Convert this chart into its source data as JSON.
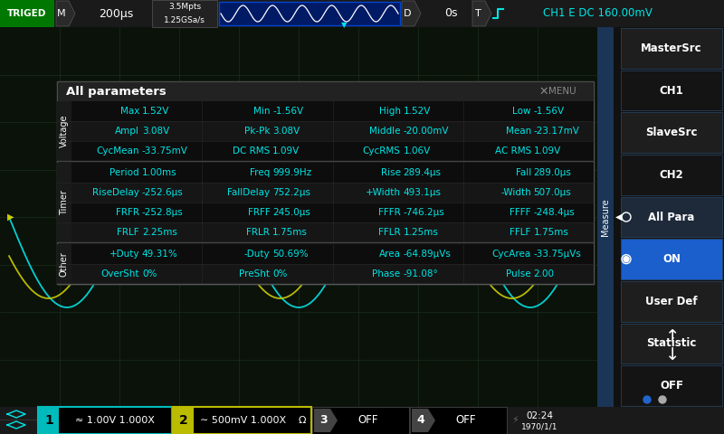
{
  "bg_color": "#000000",
  "screen_bg": "#0a120a",
  "grid_color": "#1c2e1c",
  "cyan": "#00e5e5",
  "yellow": "#cccc00",
  "white": "#ffffff",
  "gray": "#888888",
  "title_bar": {
    "triged_bg": "#007700",
    "timebase": "200μs",
    "mpts": "3.5Mpts",
    "gsa": "1.25GSa/s",
    "delay": "0s",
    "ch1_trig": "CH1 E DC 160.00mV"
  },
  "right_panel": {
    "items": [
      "MasterSrc",
      "CH1",
      "SlaveSrc",
      "CH2",
      "All Para",
      "ON",
      "User Def",
      "Statistic",
      "OFF"
    ],
    "bgs": [
      "#1e1e1e",
      "#141414",
      "#1e1e1e",
      "#141414",
      "#1e2a3a",
      "#1a5fcc",
      "#1e1e1e",
      "#1e1e1e",
      "#141414"
    ]
  },
  "bottom_bar": {
    "ch1_val": "≈ 1.00V 1.000X",
    "ch1_color": "#00bbbb",
    "ch2_val": "∼ 500mV 1.000X",
    "ch2_color": "#bbbb00",
    "time": "02:24",
    "date": "1970/1/1"
  },
  "table_title": "All parameters",
  "sections": [
    {
      "label": "Voltage",
      "rows": [
        [
          {
            "name": "Max",
            "val": "1.52V"
          },
          {
            "name": "Min",
            "val": "-1.56V"
          },
          {
            "name": "High",
            "val": "1.52V"
          },
          {
            "name": "Low",
            "val": "-1.56V"
          }
        ],
        [
          {
            "name": "Ampl",
            "val": "3.08V"
          },
          {
            "name": "Pk-Pk",
            "val": "3.08V"
          },
          {
            "name": "Middle",
            "val": "-20.00mV"
          },
          {
            "name": "Mean",
            "val": "-23.17mV"
          }
        ],
        [
          {
            "name": "CycMean",
            "val": "-33.75mV"
          },
          {
            "name": "DC RMS",
            "val": "1.09V"
          },
          {
            "name": "CycRMS",
            "val": "1.06V"
          },
          {
            "name": "AC RMS",
            "val": "1.09V"
          }
        ]
      ]
    },
    {
      "label": "Timer",
      "rows": [
        [
          {
            "name": "Period",
            "val": "1.00ms"
          },
          {
            "name": "Freq",
            "val": "999.9Hz"
          },
          {
            "name": "Rise",
            "val": "289.4μs"
          },
          {
            "name": "Fall",
            "val": "289.0μs"
          }
        ],
        [
          {
            "name": "RiseDelay",
            "val": "-252.6μs"
          },
          {
            "name": "FallDelay",
            "val": "752.2μs"
          },
          {
            "name": "+Width",
            "val": "493.1μs"
          },
          {
            "name": "-Width",
            "val": "507.0μs"
          }
        ],
        [
          {
            "name": "FRFR",
            "val": "-252.8μs"
          },
          {
            "name": "FRFF",
            "val": "245.0μs"
          },
          {
            "name": "FFFR",
            "val": "-746.2μs"
          },
          {
            "name": "FFFF",
            "val": "-248.4μs"
          }
        ],
        [
          {
            "name": "FRLF",
            "val": "2.25ms"
          },
          {
            "name": "FRLR",
            "val": "1.75ms"
          },
          {
            "name": "FFLR",
            "val": "1.25ms"
          },
          {
            "name": "FFLF",
            "val": "1.75ms"
          }
        ]
      ]
    },
    {
      "label": "Other",
      "rows": [
        [
          {
            "name": "+Duty",
            "val": "49.31%"
          },
          {
            "name": "-Duty",
            "val": "50.69%"
          },
          {
            "name": "Area",
            "val": "-64.89μVs"
          },
          {
            "name": "CycArea",
            "val": "-33.75μVs"
          }
        ],
        [
          {
            "name": "OverSht",
            "val": "0%"
          },
          {
            "name": "PreSht",
            "val": "0%"
          },
          {
            "name": "Phase",
            "val": "-91.08°"
          },
          {
            "name": "Pulse",
            "val": "2.00"
          }
        ]
      ]
    }
  ]
}
